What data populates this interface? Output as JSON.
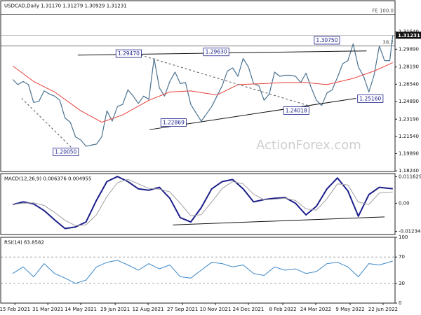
{
  "chart_data": [
    {
      "type": "line",
      "title": "USDCAD,Daily  1.31170 1.31279 1.30929 1.31231",
      "x": [
        "2021-02-12",
        "2021-02-19",
        "2021-02-26",
        "2021-03-05",
        "2021-03-12",
        "2021-03-19",
        "2021-03-26",
        "2021-04-02",
        "2021-04-09",
        "2021-04-16",
        "2021-04-23",
        "2021-04-30",
        "2021-05-07",
        "2021-05-14",
        "2021-05-21",
        "2021-05-28",
        "2021-06-04",
        "2021-06-11",
        "2021-06-18",
        "2021-06-25",
        "2021-07-02",
        "2021-07-09",
        "2021-07-16",
        "2021-07-23",
        "2021-07-30",
        "2021-08-06",
        "2021-08-13",
        "2021-08-20",
        "2021-08-27",
        "2021-09-03",
        "2021-09-10",
        "2021-09-17",
        "2021-09-24",
        "2021-10-01",
        "2021-10-08",
        "2021-10-15",
        "2021-10-22",
        "2021-10-29",
        "2021-11-05",
        "2021-11-12",
        "2021-11-19",
        "2021-11-26",
        "2021-12-03",
        "2021-12-10",
        "2021-12-17",
        "2021-12-24",
        "2021-12-31",
        "2022-01-07",
        "2022-01-14",
        "2022-01-21",
        "2022-01-28",
        "2022-02-04",
        "2022-02-11",
        "2022-02-18",
        "2022-02-25",
        "2022-03-04",
        "2022-03-11",
        "2022-03-18",
        "2022-03-25",
        "2022-04-01",
        "2022-04-08",
        "2022-04-15",
        "2022-04-22",
        "2022-04-29",
        "2022-05-06",
        "2022-05-13",
        "2022-05-20",
        "2022-05-27",
        "2022-06-03",
        "2022-06-10",
        "2022-06-17",
        "2022-06-24",
        "2022-07-01",
        "2022-07-05"
      ],
      "series": [
        {
          "color": "#4b7391",
          "values": [
            1.27,
            1.265,
            1.268,
            1.265,
            1.248,
            1.249,
            1.259,
            1.256,
            1.254,
            1.25,
            1.233,
            1.229,
            1.215,
            1.212,
            1.206,
            1.207,
            1.208,
            1.215,
            1.24,
            1.23,
            1.244,
            1.246,
            1.26,
            1.254,
            1.247,
            1.254,
            1.251,
            1.29,
            1.262,
            1.254,
            1.268,
            1.277,
            1.266,
            1.267,
            1.246,
            1.238,
            1.23,
            1.237,
            1.244,
            1.254,
            1.264,
            1.278,
            1.281,
            1.273,
            1.29,
            1.282,
            1.266,
            1.264,
            1.25,
            1.256,
            1.277,
            1.273,
            1.274,
            1.274,
            1.273,
            1.267,
            1.276,
            1.262,
            1.25,
            1.245,
            1.257,
            1.26,
            1.272,
            1.285,
            1.288,
            1.304,
            1.282,
            1.273,
            1.258,
            1.274,
            1.302,
            1.288,
            1.288,
            1.31231
          ]
        },
        {
          "color": "#e8403a",
          "x": [
            "2021-02-12",
            "2021-03-12",
            "2021-04-09",
            "2021-05-14",
            "2021-06-11",
            "2021-07-09",
            "2021-08-13",
            "2021-09-10",
            "2021-10-08",
            "2021-11-12",
            "2021-12-10",
            "2022-01-14",
            "2022-02-11",
            "2022-03-11",
            "2022-04-08",
            "2022-05-13",
            "2022-06-10",
            "2022-07-05"
          ],
          "values": [
            1.283,
            1.268,
            1.258,
            1.24,
            1.229,
            1.236,
            1.25,
            1.258,
            1.259,
            1.255,
            1.265,
            1.266,
            1.267,
            1.267,
            1.265,
            1.271,
            1.278,
            1.286
          ]
        }
      ],
      "xlim": [
        "2021-01-27",
        "2022-07-08"
      ],
      "ylim": [
        1.1818,
        1.3454
      ],
      "yticks": [
        {
          "value": 1.1824,
          "label": "1.18240"
        },
        {
          "value": 1.1989,
          "label": "1.19890"
        },
        {
          "value": 1.2154,
          "label": "1.21540"
        },
        {
          "value": 1.2319,
          "label": "1.23190"
        },
        {
          "value": 1.2489,
          "label": "1.24890"
        },
        {
          "value": 1.2654,
          "label": "1.26540"
        },
        {
          "value": 1.2819,
          "label": "1.28190"
        },
        {
          "value": 1.2989,
          "label": "1.29890"
        },
        {
          "value": 1.3154,
          "label": "1.31540"
        }
      ],
      "levels": [
        {
          "label": "FE 100.0",
          "value": 1.3323
        },
        {
          "label": "38.2",
          "value": 1.302
        }
      ],
      "trendlines": [
        {
          "style": "solid",
          "x": [
            "2021-05-10",
            "2022-05-31"
          ],
          "values": [
            1.2933,
            1.2973
          ]
        },
        {
          "style": "solid",
          "x": [
            "2021-08-14",
            "2022-05-17"
          ],
          "values": [
            1.2219,
            1.2519
          ]
        },
        {
          "style": "dashed",
          "x": [
            "2021-02-24",
            "2021-05-01"
          ],
          "values": [
            1.2519,
            1.2052
          ]
        },
        {
          "style": "dashed",
          "x": [
            "2021-08-02",
            "2022-03-13"
          ],
          "values": [
            1.2933,
            1.2452
          ]
        }
      ],
      "annotations": [
        {
          "label": "1.20050",
          "value": 1.2005,
          "x": "2021-04-24"
        },
        {
          "label": "1.29470",
          "value": 1.2947,
          "x": "2021-07-17"
        },
        {
          "label": "1.29630",
          "value": 1.2963,
          "x": "2021-11-11"
        },
        {
          "label": "1.22869",
          "value": 1.22869,
          "x": "2021-09-15"
        },
        {
          "label": "1.24018",
          "value": 1.24018,
          "x": "2022-02-26"
        },
        {
          "label": "1.30750",
          "value": 1.3075,
          "x": "2022-04-08"
        },
        {
          "label": "1.25160",
          "value": 1.2516,
          "x": "2022-06-05"
        }
      ],
      "price_label": {
        "value": 1.31231,
        "label": "1.31231"
      },
      "watermark": "ActionForex.com"
    },
    {
      "type": "line",
      "title": "MACD(12,26,9) 0.006376 0.004955",
      "x": [
        "2021-02-12",
        "2021-02-26",
        "2021-03-12",
        "2021-03-26",
        "2021-04-09",
        "2021-04-23",
        "2021-05-07",
        "2021-05-21",
        "2021-06-04",
        "2021-06-18",
        "2021-07-02",
        "2021-07-16",
        "2021-07-30",
        "2021-08-13",
        "2021-08-27",
        "2021-09-10",
        "2021-09-24",
        "2021-10-08",
        "2021-10-22",
        "2021-11-05",
        "2021-11-19",
        "2021-12-03",
        "2021-12-17",
        "2021-12-31",
        "2022-01-14",
        "2022-01-28",
        "2022-02-11",
        "2022-02-25",
        "2022-03-11",
        "2022-03-25",
        "2022-04-08",
        "2022-04-22",
        "2022-05-06",
        "2022-05-20",
        "2022-06-03",
        "2022-06-17",
        "2022-07-05"
      ],
      "series": [
        {
          "color": "#1c1f8a",
          "values": [
            -0.0006,
            0.0006,
            -0.0003,
            -0.0032,
            -0.0073,
            -0.0111,
            -0.0104,
            -0.0082,
            0.0013,
            0.0095,
            0.0117,
            0.0095,
            0.0063,
            0.0057,
            0.007,
            0.0022,
            -0.0063,
            -0.0082,
            -0.0019,
            0.0063,
            0.0095,
            0.0104,
            0.0063,
            0.0006,
            0.0016,
            0.0022,
            0.0025,
            0,
            -0.0051,
            -0.0013,
            0.0063,
            0.0111,
            0.0054,
            -0.0057,
            0.0038,
            0.007,
            0.006376
          ]
        },
        {
          "color": "#a0a0a0",
          "values": [
            -0.0005,
            0,
            0.0002,
            -0.001,
            -0.004,
            -0.0075,
            -0.0098,
            -0.0095,
            -0.005,
            0.003,
            0.009,
            0.0105,
            0.0085,
            0.0065,
            0.0062,
            0.005,
            0,
            -0.0055,
            -0.005,
            0.0005,
            0.0065,
            0.0095,
            0.0085,
            0.004,
            0.0015,
            0.0018,
            0.0022,
            0.0012,
            -0.0025,
            -0.003,
            0.002,
            0.0085,
            0.008,
            0.0005,
            -0.0005,
            0.0045,
            0.004955
          ]
        }
      ],
      "xlim": [
        "2021-01-27",
        "2022-07-08"
      ],
      "ylim": [
        -0.0137,
        0.013
      ],
      "yticks": [
        -0.012348,
        {
          "value": 0,
          "label": "0.00"
        },
        0.011629
      ],
      "trendlines": [
        {
          "style": "solid",
          "x": [
            "2021-09-14",
            "2022-06-24"
          ],
          "values": [
            -0.0095,
            -0.006
          ]
        }
      ]
    },
    {
      "type": "line",
      "title": "RSI(14) 63.8582",
      "x": [
        "2021-02-12",
        "2021-02-26",
        "2021-03-12",
        "2021-03-26",
        "2021-04-09",
        "2021-04-23",
        "2021-05-07",
        "2021-05-21",
        "2021-06-04",
        "2021-06-18",
        "2021-07-02",
        "2021-07-16",
        "2021-07-30",
        "2021-08-13",
        "2021-08-27",
        "2021-09-10",
        "2021-09-24",
        "2021-10-08",
        "2021-10-22",
        "2021-11-05",
        "2021-11-19",
        "2021-12-03",
        "2021-12-17",
        "2021-12-31",
        "2022-01-14",
        "2022-01-28",
        "2022-02-11",
        "2022-02-25",
        "2022-03-11",
        "2022-03-25",
        "2022-04-08",
        "2022-04-22",
        "2022-05-06",
        "2022-05-20",
        "2022-06-03",
        "2022-06-17",
        "2022-07-05"
      ],
      "series": [
        {
          "color": "#3a86c8",
          "values": [
            45,
            55,
            40,
            60,
            45,
            38,
            30,
            35,
            55,
            62,
            65,
            58,
            50,
            60,
            52,
            58,
            40,
            38,
            50,
            62,
            60,
            55,
            58,
            45,
            42,
            55,
            50,
            52,
            45,
            48,
            60,
            62,
            55,
            40,
            60,
            58,
            63.8582
          ]
        }
      ],
      "xlim": [
        "2021-01-27",
        "2022-07-08"
      ],
      "ylim": [
        0,
        100
      ],
      "yticks": [
        0,
        30,
        70,
        100
      ],
      "levels": [
        {
          "value": 70
        },
        {
          "value": 30
        }
      ],
      "xticks": [
        {
          "value": "2021-02-15",
          "label": "15 Feb 2021"
        },
        {
          "value": "2021-03-31",
          "label": "31 Mar 2021"
        },
        {
          "value": "2021-05-14",
          "label": "14 May 2021"
        },
        {
          "value": "2021-06-29",
          "label": "29 Jun 2021"
        },
        {
          "value": "2021-08-12",
          "label": "12 Aug 2021"
        },
        {
          "value": "2021-09-27",
          "label": "27 Sep 2021"
        },
        {
          "value": "2021-11-10",
          "label": "10 Nov 2021"
        },
        {
          "value": "2021-12-24",
          "label": "24 Dec 2021"
        },
        {
          "value": "2022-02-08",
          "label": "8 Feb 2022"
        },
        {
          "value": "2022-03-24",
          "label": "24 Mar 2022"
        },
        {
          "value": "2022-05-09",
          "label": "9 May 2022"
        },
        {
          "value": "2022-06-22",
          "label": "22 Jun 2022"
        }
      ]
    }
  ]
}
